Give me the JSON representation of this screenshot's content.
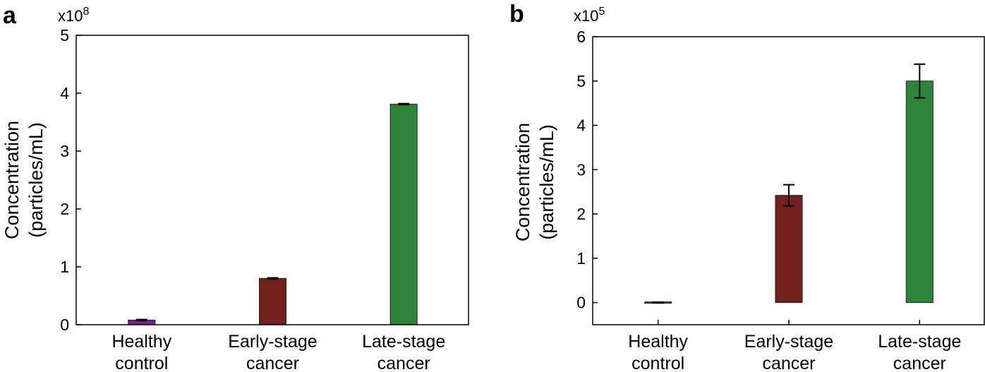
{
  "chart_data": [
    {
      "panel": "a",
      "type": "bar",
      "scale_label": {
        "base": "x10",
        "exponent": "8"
      },
      "ylabel_lines": [
        "Concentration",
        "(particles/mL)"
      ],
      "ylim": [
        0,
        5
      ],
      "yticks": [
        0,
        1,
        2,
        3,
        4,
        5
      ],
      "categories": [
        {
          "lines": [
            "Healthy",
            "control"
          ]
        },
        {
          "lines": [
            "Early-stage",
            "cancer"
          ]
        },
        {
          "lines": [
            "Late-stage",
            "cancer"
          ]
        }
      ],
      "values": [
        0.08,
        0.8,
        3.81
      ],
      "errors": [
        0.01,
        0.01,
        0.01
      ],
      "colors": [
        "#7b1f91",
        "#731f1e",
        "#2e843a"
      ]
    },
    {
      "panel": "b",
      "type": "bar",
      "scale_label": {
        "base": "x10",
        "exponent": "5"
      },
      "ylabel_lines": [
        "Concentration",
        "(particles/mL)"
      ],
      "ylim": [
        -0.5,
        6
      ],
      "yticks": [
        0,
        1,
        2,
        3,
        4,
        5,
        6
      ],
      "categories": [
        {
          "lines": [
            "Healthy",
            "control"
          ]
        },
        {
          "lines": [
            "Early-stage",
            "cancer"
          ]
        },
        {
          "lines": [
            "Late-stage",
            "cancer"
          ]
        }
      ],
      "values": [
        0.0,
        2.42,
        5.0
      ],
      "errors": [
        0.01,
        0.24,
        0.38
      ],
      "colors": [
        "#7b1f91",
        "#731f1e",
        "#2e843a"
      ]
    }
  ]
}
